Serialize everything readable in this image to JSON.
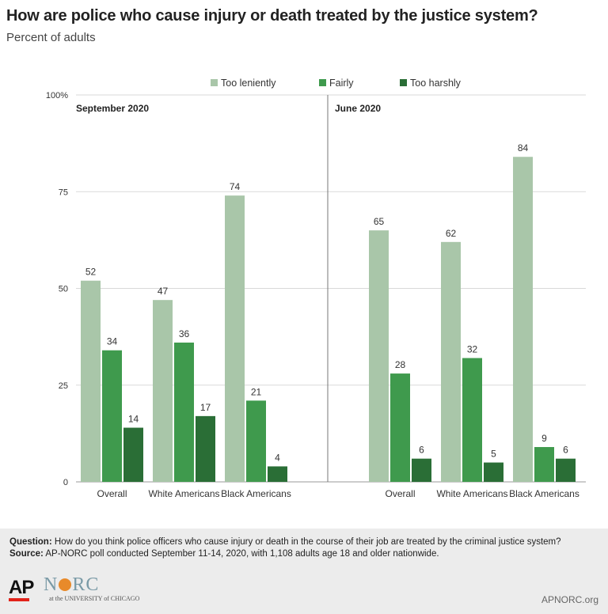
{
  "header": {
    "title": "How are police who cause injury or death treated by the justice system?",
    "subtitle": "Percent of adults"
  },
  "chart_data": {
    "type": "bar",
    "title": "How are police who cause injury or death treated by the justice system?",
    "subtitle": "Percent of adults",
    "ylim": [
      0,
      100
    ],
    "yticks": [
      "0",
      "25",
      "50",
      "75",
      "100%"
    ],
    "ytick_values": [
      0,
      25,
      50,
      75,
      100
    ],
    "grid": true,
    "legend_position": "top",
    "series_names": [
      "Too leniently",
      "Fairly",
      "Too harshly"
    ],
    "series_colors": [
      "#a9c6a9",
      "#3f9a4d",
      "#2a6e36"
    ],
    "panels": [
      {
        "label": "September 2020",
        "categories": [
          "Overall",
          "White Americans",
          "Black Americans"
        ],
        "series": [
          {
            "name": "Too leniently",
            "values": [
              52,
              47,
              74
            ]
          },
          {
            "name": "Fairly",
            "values": [
              34,
              36,
              21
            ]
          },
          {
            "name": "Too harshly",
            "values": [
              14,
              17,
              4
            ]
          }
        ]
      },
      {
        "label": "June 2020",
        "categories": [
          "Overall",
          "White Americans",
          "Black Americans"
        ],
        "series": [
          {
            "name": "Too leniently",
            "values": [
              65,
              62,
              84
            ]
          },
          {
            "name": "Fairly",
            "values": [
              28,
              32,
              9
            ]
          },
          {
            "name": "Too harshly",
            "values": [
              6,
              5,
              6
            ]
          }
        ]
      }
    ]
  },
  "footer": {
    "question_label": "Question:",
    "question_text": "How do you think police officers who cause injury or death in the course of their job are treated by the criminal justice system?",
    "source_label": "Source:",
    "source_text": "AP-NORC poll conducted September 11-14, 2020, with 1,108 adults age 18 and older nationwide.",
    "logo_ap": "AP",
    "logo_norc_1": "N",
    "logo_norc_2": "RC",
    "logo_uchicago": "at the UNIVERSITY of CHICAGO",
    "site": "APNORC.org"
  }
}
